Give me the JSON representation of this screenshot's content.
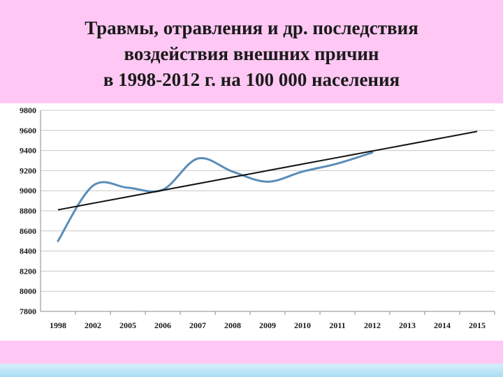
{
  "slide": {
    "title_lines": [
      "Травмы, отравления и др. последствия",
      "воздействия внешних причин",
      "в 1998-2012 г. на 100 000 населения"
    ]
  },
  "colors": {
    "background": "#ffc8f4",
    "series": "#5b8db8",
    "trend": "#111111",
    "grid": "#c8c8c8"
  },
  "chart_data": {
    "type": "line",
    "categories": [
      "1998",
      "2002",
      "2005",
      "2006",
      "2007",
      "2008",
      "2009",
      "2010",
      "2011",
      "2012",
      "2013",
      "2014",
      "2015"
    ],
    "ylim": [
      7800,
      9800
    ],
    "yticks": [
      7800,
      8000,
      8200,
      8400,
      8600,
      8800,
      9000,
      9200,
      9400,
      9600,
      9800
    ],
    "grid": true,
    "legend": "none",
    "series": [
      {
        "values": [
          8500,
          9050,
          9030,
          9010,
          9320,
          9190,
          9090,
          9190,
          9270,
          9380,
          null,
          null,
          null
        ]
      },
      {
        "style": "linear trend",
        "values": [
          8810,
          8875,
          8940,
          9005,
          9070,
          9135,
          9200,
          9265,
          9330,
          9395,
          9460,
          9525,
          9590
        ]
      }
    ]
  }
}
